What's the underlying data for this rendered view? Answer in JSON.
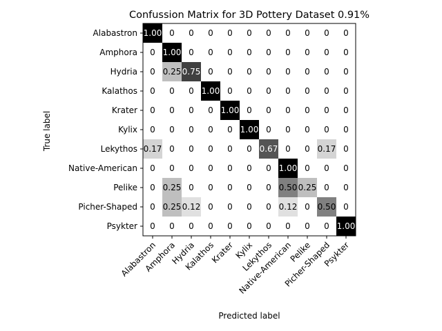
{
  "chart_data": {
    "type": "heatmap",
    "title": "Confussion Matrix for 3D Pottery Dataset 0.91%",
    "xlabel": "Predicted label",
    "ylabel": "True label",
    "colormap": "Greys",
    "value_range": [
      0,
      1
    ],
    "categories": [
      "Alabastron",
      "Amphora",
      "Hydria",
      "Kalathos",
      "Krater",
      "Kylix",
      "Lekythos",
      "Native-American",
      "Pelike",
      "Picher-Shaped",
      "Psykter"
    ],
    "values": [
      [
        1.0,
        0,
        0,
        0,
        0,
        0,
        0,
        0,
        0,
        0,
        0
      ],
      [
        0,
        1.0,
        0,
        0,
        0,
        0,
        0,
        0,
        0,
        0,
        0
      ],
      [
        0,
        0.25,
        0.75,
        0,
        0,
        0,
        0,
        0,
        0,
        0,
        0
      ],
      [
        0,
        0,
        0,
        1.0,
        0,
        0,
        0,
        0,
        0,
        0,
        0
      ],
      [
        0,
        0,
        0,
        0,
        1.0,
        0,
        0,
        0,
        0,
        0,
        0
      ],
      [
        0,
        0,
        0,
        0,
        0,
        1.0,
        0,
        0,
        0,
        0,
        0
      ],
      [
        0.17,
        0,
        0,
        0,
        0,
        0,
        0.67,
        0,
        0,
        0.17,
        0
      ],
      [
        0,
        0,
        0,
        0,
        0,
        0,
        0,
        1.0,
        0,
        0,
        0
      ],
      [
        0,
        0.25,
        0,
        0,
        0,
        0,
        0,
        0.5,
        0.25,
        0,
        0
      ],
      [
        0,
        0.25,
        0.12,
        0,
        0,
        0,
        0,
        0.12,
        0,
        0.5,
        0
      ],
      [
        0,
        0,
        0,
        0,
        0,
        0,
        0,
        0,
        0,
        0,
        1.0
      ]
    ],
    "cell_labels": [
      [
        "1.00",
        "0",
        "0",
        "0",
        "0",
        "0",
        "0",
        "0",
        "0",
        "0",
        "0"
      ],
      [
        "0",
        "1.00",
        "0",
        "0",
        "0",
        "0",
        "0",
        "0",
        "0",
        "0",
        "0"
      ],
      [
        "0",
        "0.25",
        "0.75",
        "0",
        "0",
        "0",
        "0",
        "0",
        "0",
        "0",
        "0"
      ],
      [
        "0",
        "0",
        "0",
        "1.00",
        "0",
        "0",
        "0",
        "0",
        "0",
        "0",
        "0"
      ],
      [
        "0",
        "0",
        "0",
        "0",
        "1.00",
        "0",
        "0",
        "0",
        "0",
        "0",
        "0"
      ],
      [
        "0",
        "0",
        "0",
        "0",
        "0",
        "1.00",
        "0",
        "0",
        "0",
        "0",
        "0"
      ],
      [
        "0.17",
        "0",
        "0",
        "0",
        "0",
        "0",
        "0.67",
        "0",
        "0",
        "0.17",
        "0"
      ],
      [
        "0",
        "0",
        "0",
        "0",
        "0",
        "0",
        "0",
        "1.00",
        "0",
        "0",
        "0"
      ],
      [
        "0",
        "0.25",
        "0",
        "0",
        "0",
        "0",
        "0",
        "0.50",
        "0.25",
        "0",
        "0"
      ],
      [
        "0",
        "0.25",
        "0.12",
        "0",
        "0",
        "0",
        "0",
        "0.12",
        "0",
        "0.50",
        "0"
      ],
      [
        "0",
        "0",
        "0",
        "0",
        "0",
        "0",
        "0",
        "0",
        "0",
        "0",
        "1.00"
      ]
    ]
  }
}
